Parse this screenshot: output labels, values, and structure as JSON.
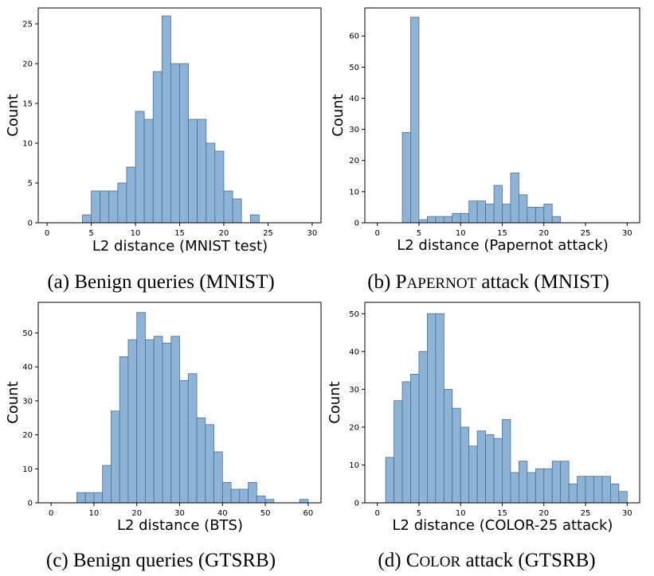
{
  "chart_data": [
    {
      "type": "bar",
      "histogram": true,
      "xlabel": "L2 distance (MNIST test)",
      "ylabel": "Count",
      "xlim": [
        -1,
        31
      ],
      "ylim": [
        0,
        27
      ],
      "xticks": [
        0,
        5,
        10,
        15,
        20,
        25,
        30
      ],
      "yticks": [
        0,
        5,
        10,
        15,
        20,
        25
      ],
      "bin_start": 4,
      "bin_width": 1,
      "values": [
        1,
        4,
        4,
        4,
        5,
        7,
        14,
        13,
        19,
        26,
        20,
        20,
        13,
        13,
        10,
        9,
        4,
        3,
        0,
        1
      ],
      "caption": "(a) Benign queries (MNIST)"
    },
    {
      "type": "bar",
      "histogram": true,
      "xlabel": "L2 distance (Papernot attack)",
      "ylabel": "Count",
      "xlim": [
        -1.5,
        31.5
      ],
      "ylim": [
        0,
        69
      ],
      "xticks": [
        0,
        5,
        10,
        15,
        20,
        25,
        30
      ],
      "yticks": [
        0,
        10,
        20,
        30,
        40,
        50,
        60
      ],
      "bin_start": 3,
      "bin_width": 1,
      "values": [
        29,
        66,
        1,
        2,
        2,
        2,
        3,
        3,
        7,
        7,
        6,
        12,
        6,
        16,
        9,
        5,
        5,
        6,
        2
      ],
      "caption": "(b) PAPERNOT attack (MNIST)"
    },
    {
      "type": "bar",
      "histogram": true,
      "xlabel": "L2 distance (BTS)",
      "ylabel": "Count",
      "xlim": [
        -3,
        63
      ],
      "ylim": [
        0,
        59
      ],
      "xticks": [
        0,
        10,
        20,
        30,
        40,
        50,
        60
      ],
      "yticks": [
        0,
        10,
        20,
        30,
        40,
        50
      ],
      "bin_start": 6,
      "bin_width": 2,
      "values": [
        3,
        3,
        3,
        11,
        27,
        43,
        48,
        56,
        48,
        49,
        47,
        49,
        36,
        38,
        25,
        23,
        15,
        6,
        4,
        4,
        6,
        2,
        1,
        0,
        0,
        0,
        1
      ],
      "caption": "(c) Benign queries (GTSRB)"
    },
    {
      "type": "bar",
      "histogram": true,
      "xlabel": "L2 distance (COLOR-25 attack)",
      "ylabel": "Count",
      "xlim": [
        -1.5,
        31.5
      ],
      "ylim": [
        0,
        53
      ],
      "xticks": [
        0,
        5,
        10,
        15,
        20,
        25,
        30
      ],
      "yticks": [
        0,
        10,
        20,
        30,
        40,
        50
      ],
      "bin_start": 1,
      "bin_width": 1,
      "values": [
        12,
        27,
        32,
        34,
        40,
        50,
        50,
        30,
        25,
        20,
        15,
        19,
        18,
        17,
        22,
        8,
        11,
        8,
        9,
        9,
        11,
        11,
        5,
        7,
        7,
        7,
        7,
        5,
        3
      ],
      "caption": "(d) COLOR attack (GTSRB)"
    }
  ],
  "colors": {
    "bar_fill": "#8db4d6",
    "bar_edge": "#4f6f8c"
  }
}
